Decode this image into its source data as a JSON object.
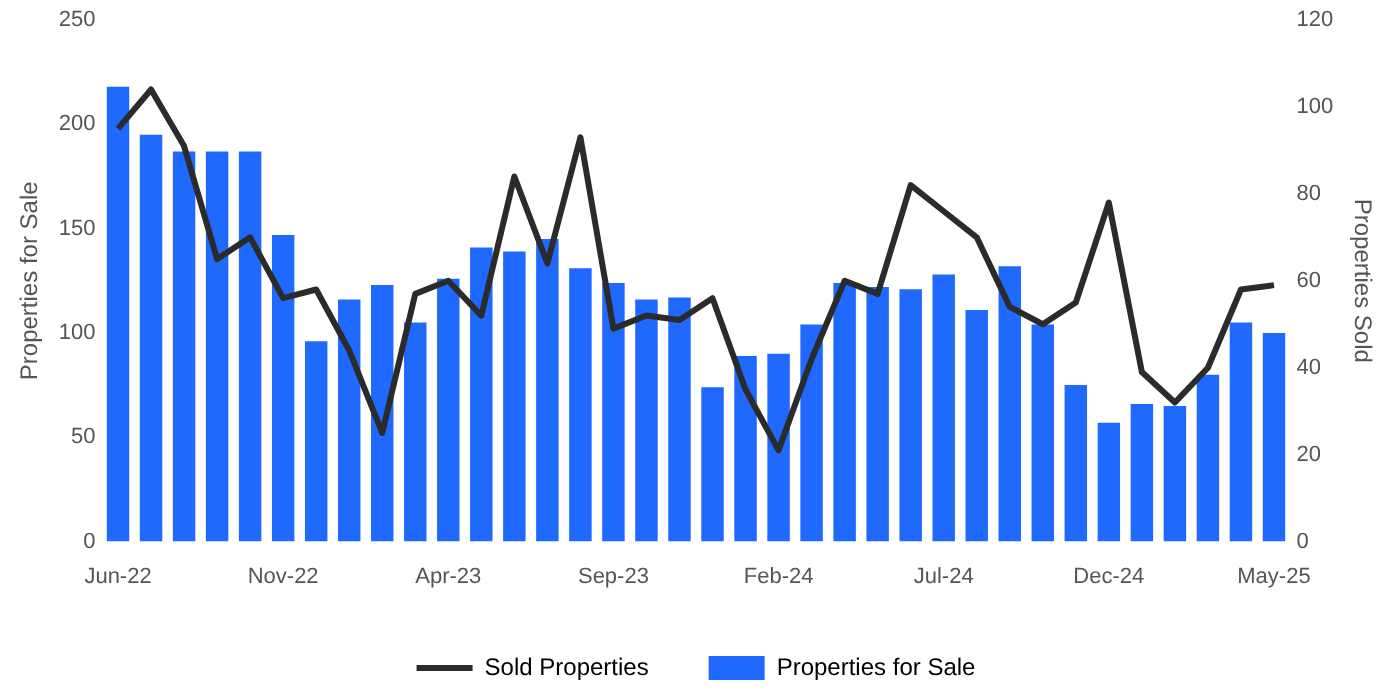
{
  "chart_data": {
    "type": "bar",
    "xlabel": null,
    "ylabel": "Properties for Sale",
    "y2label": "Properties Sold",
    "categories": [
      "Jun-22",
      null,
      null,
      null,
      null,
      "Nov-22",
      null,
      null,
      null,
      null,
      "Apr-23",
      null,
      null,
      null,
      null,
      "Sep-23",
      null,
      null,
      null,
      null,
      "Feb-24",
      null,
      null,
      null,
      null,
      "Jul-24",
      null,
      null,
      null,
      null,
      "Dec-24",
      null,
      null,
      null,
      null,
      "May-25"
    ],
    "series": [
      {
        "name": "Sold Properties",
        "type": "line",
        "axis": "y2",
        "color": "#2b2b2b",
        "values": [
          95,
          104,
          91,
          65,
          70,
          56,
          58,
          44,
          25,
          57,
          60,
          52,
          84,
          64,
          93,
          49,
          52,
          51,
          56,
          35,
          21,
          42,
          60,
          57,
          82,
          76,
          70,
          54,
          50,
          55,
          78,
          39,
          32,
          40,
          58,
          59
        ]
      },
      {
        "name": "Properties for Sale",
        "color": "#1f69ff",
        "values": [
          218,
          195,
          187,
          187,
          187,
          147,
          96,
          116,
          123,
          105,
          126,
          141,
          139,
          145,
          131,
          124,
          116,
          117,
          74,
          89,
          90,
          104,
          124,
          122,
          121,
          128,
          111,
          132,
          104,
          75,
          57,
          66,
          65,
          80,
          105,
          100
        ]
      }
    ],
    "ylim": [
      0,
      250
    ],
    "yticks": [
      0,
      50,
      100,
      150,
      200,
      250
    ],
    "y2lim": [
      0,
      120
    ],
    "y2ticks": [
      0,
      20,
      40,
      60,
      80,
      100,
      120
    ],
    "legend": "bottom",
    "grid": false,
    "marker": "none",
    "line_style": "solid"
  }
}
